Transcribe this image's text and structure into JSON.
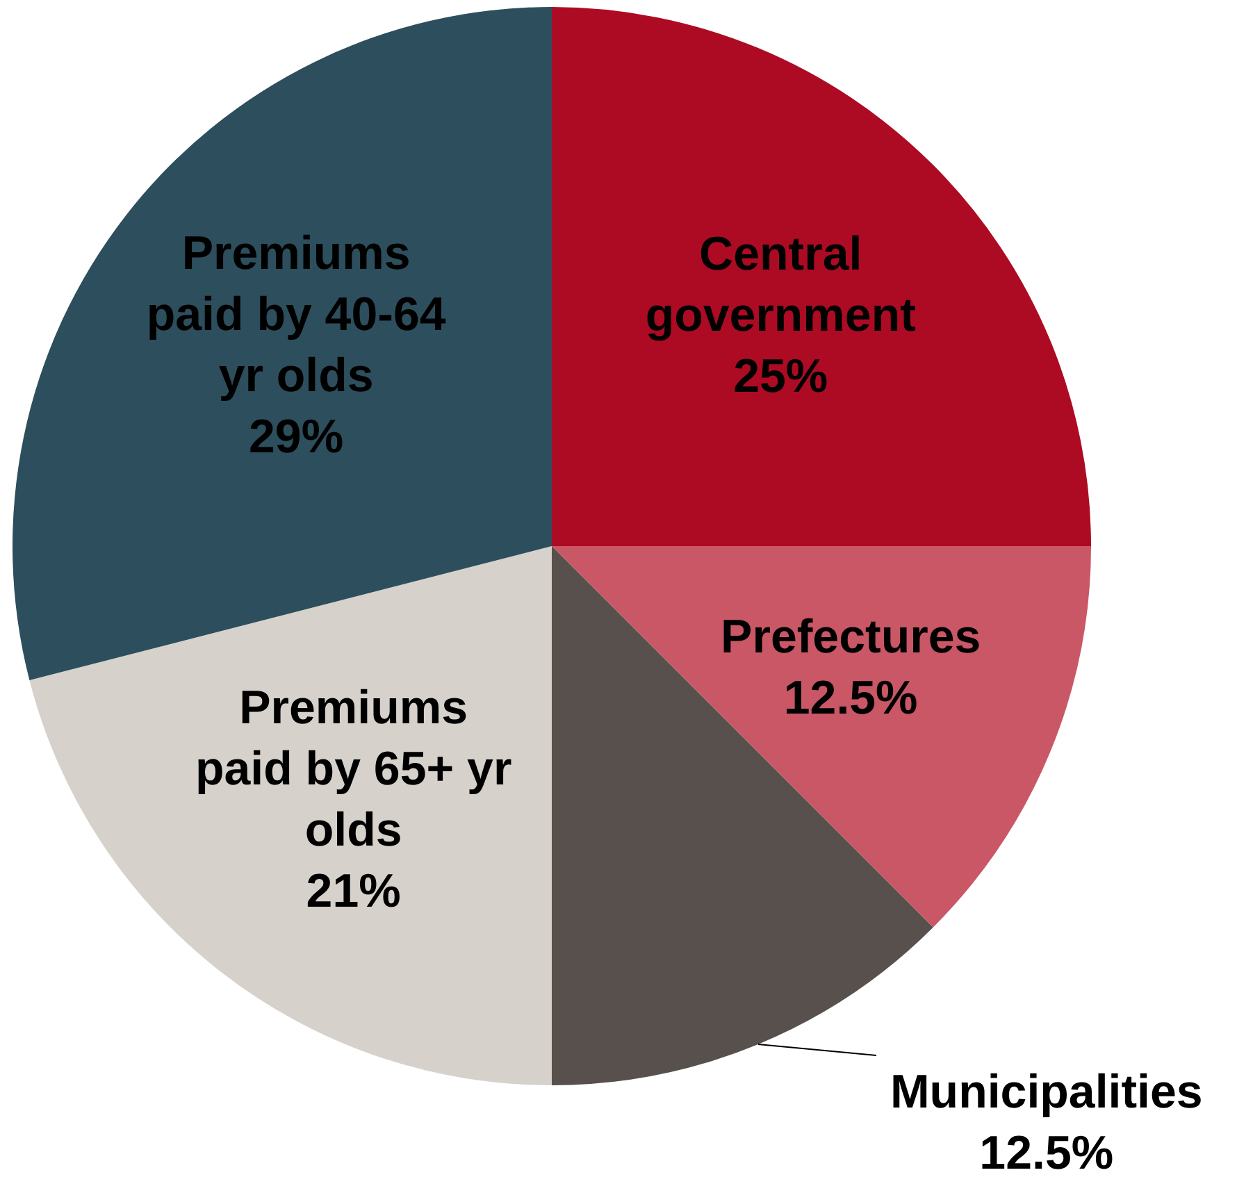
{
  "chart_data": {
    "type": "pie",
    "categories": [
      "Central government",
      "Prefectures",
      "Municipalities",
      "Premiums paid by 65+ yr olds",
      "Premiums paid by 40-64 yr olds"
    ],
    "values": [
      25,
      12.5,
      12.5,
      21,
      29
    ],
    "value_labels": [
      "25%",
      "12.5%",
      "12.5%",
      "21%",
      "29%"
    ],
    "colors": [
      "#ad0b23",
      "#c95766",
      "#57504c",
      "#d6d2cb",
      "#2d4e5c"
    ],
    "legend": false
  }
}
